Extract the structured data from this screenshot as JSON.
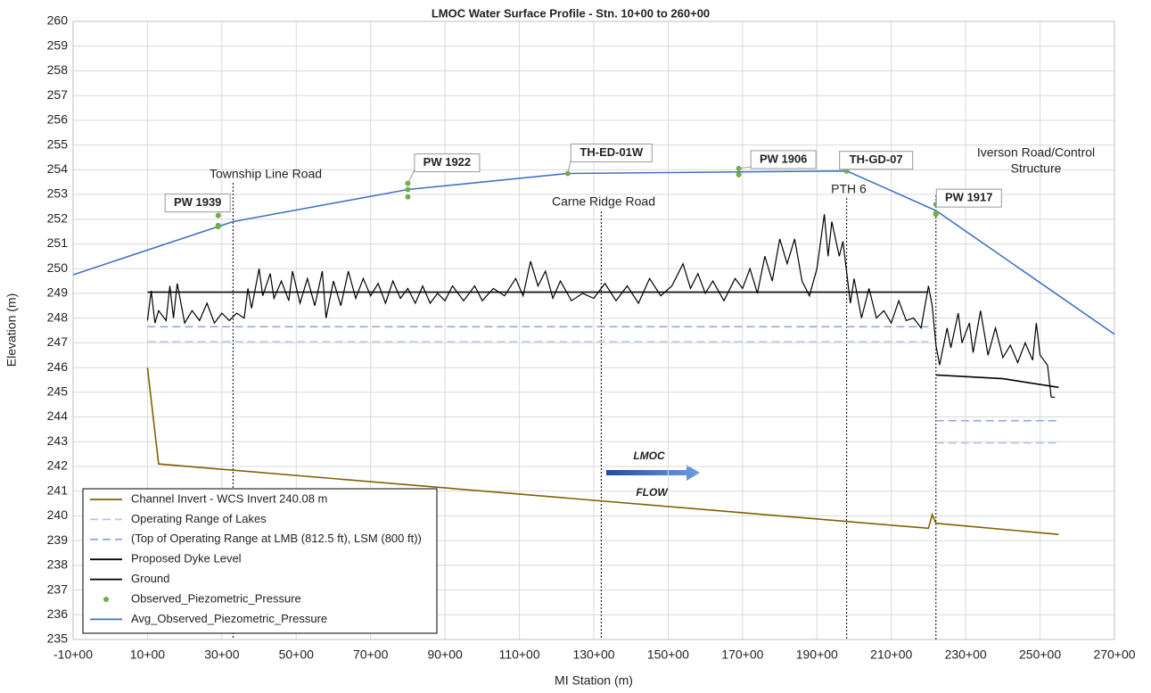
{
  "chart_data": {
    "type": "line",
    "title": "LMOC Water Surface Profile - Stn. 10+00 to 260+00",
    "x_label": "MI Station (m)",
    "y_label": "Elevation (m)",
    "xlim": [
      -1000,
      27000
    ],
    "xticks": [
      {
        "value": -1000,
        "label": "-10+00"
      },
      {
        "value": 1000,
        "label": "10+00"
      },
      {
        "value": 3000,
        "label": "30+00"
      },
      {
        "value": 5000,
        "label": "50+00"
      },
      {
        "value": 7000,
        "label": "70+00"
      },
      {
        "value": 9000,
        "label": "90+00"
      },
      {
        "value": 11000,
        "label": "110+00"
      },
      {
        "value": 13000,
        "label": "130+00"
      },
      {
        "value": 15000,
        "label": "150+00"
      },
      {
        "value": 17000,
        "label": "170+00"
      },
      {
        "value": 19000,
        "label": "190+00"
      },
      {
        "value": 21000,
        "label": "210+00"
      },
      {
        "value": 23000,
        "label": "230+00"
      },
      {
        "value": 25000,
        "label": "250+00"
      },
      {
        "value": 27000,
        "label": "270+00"
      }
    ],
    "ylim": [
      235,
      260
    ],
    "yticks": [
      235,
      236,
      237,
      238,
      239,
      240,
      241,
      242,
      243,
      244,
      245,
      246,
      247,
      248,
      249,
      250,
      251,
      252,
      253,
      254,
      255,
      256,
      257,
      258,
      259,
      260
    ],
    "grid": true,
    "legend": "bottom-left",
    "series": [
      {
        "name": "Channel Invert - WCS Invert 240.08 m",
        "type": "line",
        "style": "solid",
        "color": "#806000",
        "width": 1.6,
        "x": [
          1000,
          1300,
          22000,
          22100,
          22200,
          25500
        ],
        "values": [
          246,
          242.1,
          239.5,
          240.05,
          239.7,
          239.25
        ]
      },
      {
        "name": "Operating Range of Lakes",
        "type": "line",
        "style": "dashed",
        "color": "#b4c7e7",
        "width": 1.6,
        "x": [
          1000,
          22000,
          22100,
          22200,
          25500
        ],
        "values": [
          247.05,
          247.05,
          null,
          242.95,
          242.95
        ]
      },
      {
        "name": "(Top of Operating Range at LMB (812.5 ft), LSM (800 ft))",
        "type": "line",
        "style": "dashed",
        "color": "#8faadc",
        "width": 1.6,
        "x": [
          1000,
          22000,
          22100,
          22200,
          25500
        ],
        "values": [
          247.65,
          247.65,
          null,
          243.85,
          243.85
        ]
      },
      {
        "name": "Proposed Dyke Level",
        "type": "line",
        "style": "solid",
        "color": "#000000",
        "width": 1.6,
        "x": [
          1000,
          22000,
          22100,
          22200,
          24000,
          25500
        ],
        "values": [
          249.05,
          249.05,
          null,
          245.7,
          245.55,
          245.2
        ]
      },
      {
        "name": "Ground",
        "type": "line",
        "style": "solid",
        "color": "#000000",
        "width": 1.2,
        "x": [
          1000,
          1100,
          1200,
          1300,
          1500,
          1600,
          1700,
          1800,
          2000,
          2200,
          2400,
          2600,
          2800,
          3000,
          3200,
          3400,
          3600,
          3700,
          3800,
          4000,
          4100,
          4300,
          4400,
          4600,
          4800,
          4900,
          5100,
          5300,
          5500,
          5700,
          5800,
          6000,
          6200,
          6400,
          6600,
          6800,
          7000,
          7200,
          7400,
          7600,
          7800,
          8000,
          8200,
          8400,
          8600,
          8800,
          9000,
          9200,
          9500,
          9800,
          10000,
          10300,
          10600,
          10900,
          11100,
          11300,
          11500,
          11700,
          11900,
          12100,
          12400,
          12700,
          13000,
          13300,
          13600,
          13900,
          14200,
          14500,
          14800,
          15100,
          15400,
          15600,
          15800,
          16000,
          16200,
          16500,
          16800,
          17000,
          17200,
          17400,
          17600,
          17800,
          18000,
          18200,
          18400,
          18600,
          18800,
          19000,
          19200,
          19300,
          19400,
          19600,
          19700,
          19900,
          20000,
          20200,
          20400,
          20600,
          20800,
          21000,
          21200,
          21400,
          21600,
          21800,
          22000,
          22100,
          22200,
          22300,
          22500,
          22600,
          22800,
          22900,
          23100,
          23200,
          23400,
          23600,
          23800,
          24000,
          24200,
          24400,
          24600,
          24800,
          24900,
          25000,
          25200,
          25300,
          25400
        ],
        "values": [
          247.9,
          249.1,
          247.8,
          248.3,
          247.9,
          249.3,
          248.0,
          249.4,
          247.8,
          248.3,
          247.9,
          248.6,
          247.8,
          248.2,
          247.9,
          248.2,
          248.0,
          249.2,
          248.4,
          250.0,
          248.9,
          249.8,
          248.8,
          249.5,
          248.7,
          249.9,
          248.6,
          249.6,
          248.5,
          249.9,
          248.0,
          249.5,
          248.5,
          249.9,
          248.8,
          249.6,
          248.9,
          249.4,
          248.6,
          249.5,
          248.8,
          249.2,
          248.6,
          249.3,
          248.6,
          249.0,
          248.7,
          249.3,
          248.7,
          249.3,
          248.7,
          249.2,
          248.9,
          249.6,
          248.9,
          250.3,
          249.3,
          249.9,
          248.8,
          249.5,
          248.7,
          249.0,
          248.8,
          249.4,
          248.7,
          249.3,
          248.6,
          249.6,
          248.9,
          249.3,
          250.2,
          249.2,
          249.8,
          249.0,
          249.5,
          248.7,
          249.6,
          249.2,
          250.0,
          249.0,
          250.5,
          249.5,
          251.2,
          250.2,
          251.2,
          249.5,
          248.9,
          250.0,
          252.2,
          250.5,
          251.9,
          250.5,
          251.1,
          248.6,
          249.6,
          248.0,
          249.2,
          248.0,
          248.3,
          247.8,
          248.7,
          247.9,
          248.0,
          247.6,
          249.3,
          248.5,
          246.9,
          246.1,
          247.6,
          246.8,
          248.2,
          247.0,
          247.8,
          246.6,
          248.3,
          246.5,
          247.6,
          246.4,
          246.9,
          246.2,
          247.0,
          246.3,
          247.8,
          246.5,
          246.1,
          244.8,
          244.8
        ]
      },
      {
        "name": "Observed_Piezometric_Pressure",
        "type": "scatter",
        "color": "#70ad47",
        "x": [
          2900,
          2900,
          2900,
          8000,
          8000,
          8000,
          12300,
          16900,
          16900,
          19800,
          22200,
          22200,
          22200
        ],
        "values": [
          252.15,
          251.75,
          251.7,
          253.45,
          253.2,
          252.9,
          253.85,
          254.05,
          253.8,
          253.95,
          252.6,
          252.25,
          252.2
        ]
      },
      {
        "name": "Avg_Observed_Piezometric_Pressure",
        "type": "line",
        "style": "solid",
        "color": "#4472c4",
        "width": 1.6,
        "x": [
          -1000,
          3300,
          8000,
          12300,
          19800,
          22200,
          27000
        ],
        "values": [
          249.75,
          251.9,
          253.2,
          253.85,
          253.95,
          252.35,
          247.35
        ]
      }
    ],
    "vertical_lines": [
      3300,
      13200,
      19800,
      22200
    ],
    "callouts": [
      {
        "text": "PW 1939",
        "x": 2900,
        "y": 252.15
      },
      {
        "text": "PW 1922",
        "x": 8000,
        "y": 253.45
      },
      {
        "text": "TH-ED-01W",
        "x": 12300,
        "y": 253.85
      },
      {
        "text": "PW 1906",
        "x": 16900,
        "y": 254.05
      },
      {
        "text": "TH-GD-07",
        "x": 19800,
        "y": 253.95
      },
      {
        "text": "PW 1917",
        "x": 22200,
        "y": 252.6
      }
    ],
    "annotations": [
      {
        "text": "Township Line Road"
      },
      {
        "text": "Carne Ridge Road"
      },
      {
        "text": "PTH 6"
      },
      {
        "text": "Iverson Road/Control"
      },
      {
        "text": "Structure"
      },
      {
        "text": "LMOC"
      },
      {
        "text": "FLOW"
      }
    ]
  }
}
